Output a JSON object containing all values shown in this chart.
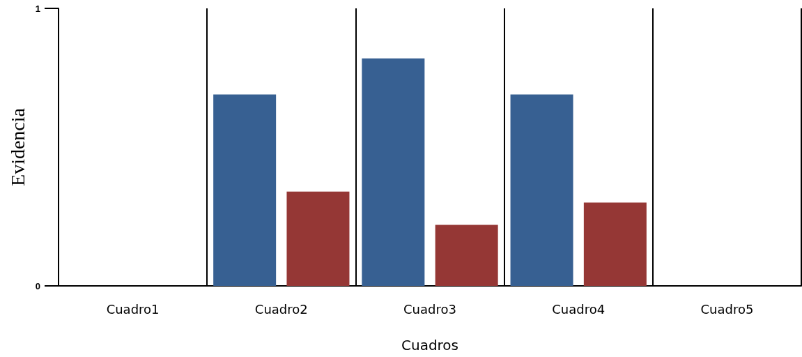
{
  "chart_data": {
    "type": "bar",
    "xlabel": "Cuadros",
    "ylabel": "Evidencia",
    "categories": [
      "Cuadro1",
      "Cuadro2",
      "Cuadro3",
      "Cuadro4",
      "Cuadro5"
    ],
    "series": [
      {
        "color": "#376092",
        "values": [
          0,
          0.69,
          0.82,
          0.69,
          0
        ]
      },
      {
        "color": "#953735",
        "values": [
          0,
          0.34,
          0.22,
          0.3,
          0
        ]
      }
    ],
    "ylim": [
      0,
      1
    ],
    "yticks": [
      0,
      1
    ],
    "grid": "x"
  }
}
